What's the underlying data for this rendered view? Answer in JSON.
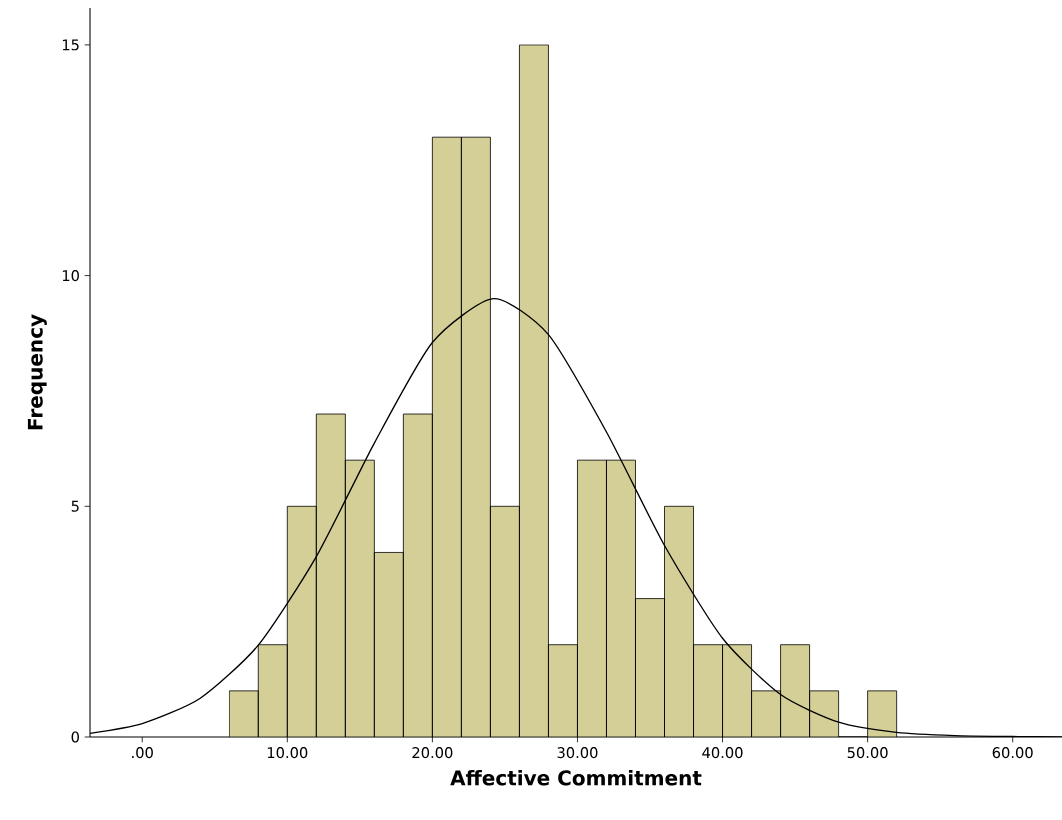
{
  "chart_data": {
    "type": "histogram",
    "xlabel": "Affective Commitment",
    "ylabel": "Frequency",
    "bins": [
      6,
      8,
      10,
      12,
      14,
      16,
      18,
      20,
      22,
      24,
      26,
      28,
      30,
      32,
      34,
      36,
      38,
      40,
      42,
      44,
      46,
      48,
      50,
      52
    ],
    "values": [
      1,
      2,
      5,
      7,
      6,
      4,
      7,
      13,
      13,
      5,
      15,
      2,
      6,
      6,
      3,
      5,
      2,
      2,
      1,
      2,
      1,
      0,
      1
    ],
    "color": "#d4cf96",
    "series": [
      {
        "type": "line",
        "color": "#000000",
        "x": [
          -3.6,
          0,
          4,
          8,
          12,
          16,
          20,
          24.2,
          28,
          32,
          36,
          40,
          44,
          48,
          52,
          56,
          60,
          63.4
        ],
        "values": [
          0.08,
          0.29,
          0.84,
          1.99,
          3.91,
          6.37,
          8.55,
          9.5,
          8.72,
          6.61,
          4.15,
          2.14,
          0.92,
          0.32,
          0.1,
          0.03,
          0.01,
          0.0
        ]
      }
    ],
    "xlim": [
      -3.6,
      63.4
    ],
    "ylim": [
      0,
      15.8
    ],
    "xticks": [
      {
        "value": 0,
        "label": ".00"
      },
      {
        "value": 10,
        "label": "10.00"
      },
      {
        "value": 20,
        "label": "20.00"
      },
      {
        "value": 30,
        "label": "30.00"
      },
      {
        "value": 40,
        "label": "40.00"
      },
      {
        "value": 50,
        "label": "50.00"
      },
      {
        "value": 60,
        "label": "60.00"
      }
    ],
    "yticks": [
      0,
      5,
      10,
      15
    ],
    "grid": false
  }
}
